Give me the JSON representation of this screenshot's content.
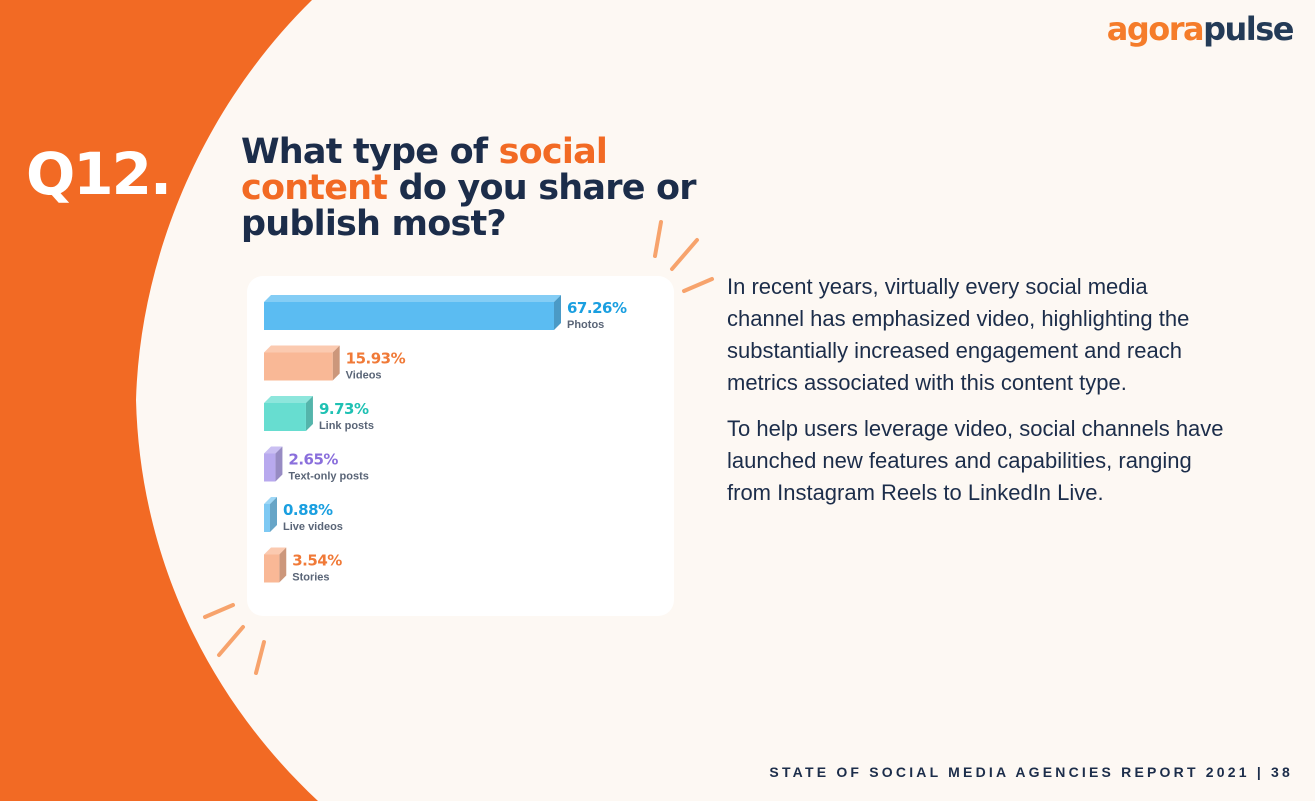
{
  "header": {
    "logo_part1": "agora",
    "logo_part2": "pulse"
  },
  "question": {
    "number": "Q12.",
    "title_part1": "What type of ",
    "title_highlight": "social content",
    "title_part2": " do you share or publish most?"
  },
  "body": {
    "paragraph1": "In recent years, virtually every social media channel has emphasized video, highlighting the substantially increased engagement and reach metrics associated with this content type.",
    "paragraph2": "To help users leverage video, social channels have launched new features and capabilities, ranging from Instagram Reels to LinkedIn Live."
  },
  "footer": {
    "text": "STATE OF SOCIAL MEDIA AGENCIES REPORT 2021 | 38"
  },
  "colors": {
    "background": "#fdf8f3",
    "orange": "#f26a24",
    "navy": "#1c2d4a"
  },
  "chart_data": {
    "type": "bar",
    "orientation": "horizontal",
    "categories": [
      "Photos",
      "Videos",
      "Link posts",
      "Text-only posts",
      "Live videos",
      "Stories"
    ],
    "values": [
      67.26,
      15.93,
      9.73,
      2.65,
      0.88,
      3.54
    ],
    "value_labels": [
      "67.26%",
      "15.93%",
      "9.73%",
      "2.65%",
      "0.88%",
      "3.54%"
    ],
    "bar_colors": [
      "#5bbcf2",
      "#f9b896",
      "#67ddd0",
      "#b8a9ee",
      "#7ec9f3",
      "#f9b896"
    ],
    "label_colors": [
      "#1a9fe0",
      "#f07a38",
      "#1fc1b3",
      "#8a6fdc",
      "#1a9fe0",
      "#f07a38"
    ],
    "title": "",
    "xlabel": "",
    "ylabel": "",
    "grid": false,
    "legend": "none"
  }
}
